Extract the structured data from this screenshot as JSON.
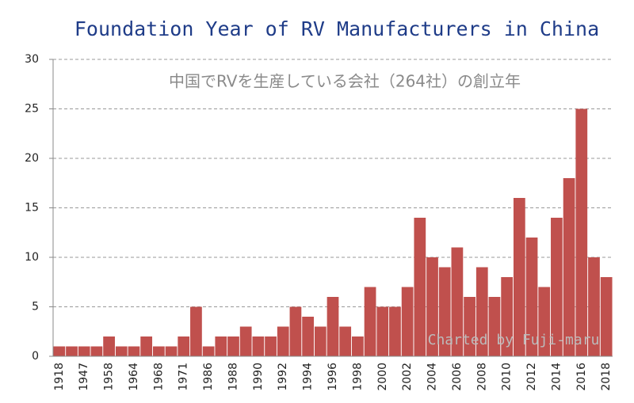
{
  "chart_data": {
    "type": "bar",
    "title": "Foundation Year of RV Manufacturers in China",
    "subtitle": "中国でRVを生産している会社（264社）の創立年",
    "annotation": "Charted by Fuji-maru",
    "categories": [
      "1918",
      null,
      "1947",
      null,
      "1958",
      null,
      "1964",
      null,
      "1968",
      null,
      "1971",
      null,
      "1986",
      null,
      "1988",
      null,
      "1990",
      null,
      "1992",
      null,
      "1994",
      null,
      "1996",
      null,
      "1998",
      null,
      "2000",
      null,
      "2002",
      null,
      "2004",
      null,
      "2006",
      null,
      "2008",
      null,
      "2010",
      null,
      "2012",
      null,
      "2014",
      null,
      "2016",
      null,
      "2018"
    ],
    "values": [
      1,
      1,
      1,
      1,
      2,
      1,
      1,
      2,
      1,
      1,
      2,
      5,
      1,
      2,
      2,
      3,
      2,
      2,
      3,
      5,
      4,
      3,
      6,
      3,
      2,
      7,
      5,
      5,
      7,
      14,
      10,
      9,
      11,
      6,
      9,
      6,
      8,
      16,
      12,
      7,
      14,
      18,
      25,
      10,
      8
    ],
    "color": "#c0504d",
    "ylim": [
      0,
      30
    ],
    "yticks": [
      0,
      5,
      10,
      15,
      20,
      25,
      30
    ],
    "grid": true
  }
}
